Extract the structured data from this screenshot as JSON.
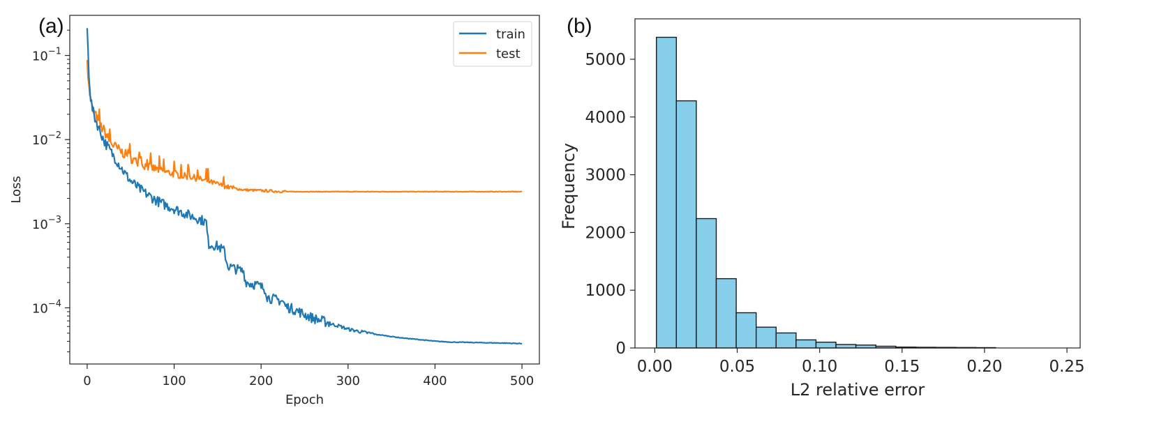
{
  "chart_data": [
    {
      "panel": "(a)",
      "type": "line",
      "xlabel": "Epoch",
      "ylabel": "Loss",
      "yscale": "log",
      "xlim": [
        -20,
        520
      ],
      "ylim": [
        2.15e-05,
        0.3
      ],
      "x_ticks": [
        0,
        100,
        200,
        300,
        400,
        500
      ],
      "y_ticks": [
        {
          "value": 0.1,
          "base": "10",
          "exp": "−1"
        },
        {
          "value": 0.01,
          "base": "10",
          "exp": "−2"
        },
        {
          "value": 0.001,
          "base": "10",
          "exp": "−3"
        },
        {
          "value": 0.0001,
          "base": "10",
          "exp": "−4"
        }
      ],
      "legend_position": "top-right",
      "series": [
        {
          "name": "train",
          "color": "#1f77b4",
          "points": [
            [
              0,
              0.2
            ],
            [
              2,
              0.06
            ],
            [
              4,
              0.03
            ],
            [
              6,
              0.022
            ],
            [
              10,
              0.016
            ],
            [
              15,
              0.012
            ],
            [
              20,
              0.009
            ],
            [
              25,
              0.0075
            ],
            [
              30,
              0.0062
            ],
            [
              35,
              0.0052
            ],
            [
              40,
              0.0043
            ],
            [
              45,
              0.0036
            ],
            [
              50,
              0.0031
            ],
            [
              60,
              0.0025
            ],
            [
              70,
              0.0021
            ],
            [
              80,
              0.0018
            ],
            [
              90,
              0.0016
            ],
            [
              100,
              0.00145
            ],
            [
              110,
              0.0013
            ],
            [
              120,
              0.00118
            ],
            [
              130,
              0.00108
            ],
            [
              137,
              0.001
            ],
            [
              138,
              0.00075
            ],
            [
              139,
              0.0006
            ],
            [
              140,
              0.00055
            ],
            [
              150,
              0.00052
            ],
            [
              158,
              0.00045
            ],
            [
              160,
              0.00035
            ],
            [
              162,
              0.0003
            ],
            [
              170,
              0.00028
            ],
            [
              180,
              0.00026
            ],
            [
              182,
              0.0002
            ],
            [
              185,
              0.00019
            ],
            [
              195,
              0.00018
            ],
            [
              205,
              0.00016
            ],
            [
              207,
              0.00013
            ],
            [
              210,
              0.000125
            ],
            [
              225,
              0.000115
            ],
            [
              228,
              0.0001
            ],
            [
              240,
              9e-05
            ],
            [
              250,
              8e-05
            ],
            [
              260,
              7.2e-05
            ],
            [
              275,
              6.5e-05
            ],
            [
              290,
              6e-05
            ],
            [
              300,
              5.5e-05
            ],
            [
              320,
              5e-05
            ],
            [
              340,
              4.7e-05
            ],
            [
              360,
              4.4e-05
            ],
            [
              380,
              4.2e-05
            ],
            [
              400,
              4e-05
            ],
            [
              420,
              3.9e-05
            ],
            [
              450,
              3.85e-05
            ],
            [
              480,
              3.8e-05
            ],
            [
              500,
              3.75e-05
            ]
          ]
        },
        {
          "name": "test",
          "color": "#ff7f0e",
          "points": [
            [
              0,
              0.075
            ],
            [
              2,
              0.04
            ],
            [
              4,
              0.028
            ],
            [
              6,
              0.022
            ],
            [
              10,
              0.018
            ],
            [
              15,
              0.014
            ],
            [
              20,
              0.012
            ],
            [
              25,
              0.0095
            ],
            [
              30,
              0.0082
            ],
            [
              40,
              0.0068
            ],
            [
              50,
              0.0058
            ],
            [
              60,
              0.005
            ],
            [
              70,
              0.0046
            ],
            [
              80,
              0.0043
            ],
            [
              90,
              0.004
            ],
            [
              100,
              0.0038
            ],
            [
              110,
              0.0036
            ],
            [
              120,
              0.0035
            ],
            [
              130,
              0.0033
            ],
            [
              140,
              0.0031
            ],
            [
              150,
              0.0029
            ],
            [
              160,
              0.0027
            ],
            [
              170,
              0.0026
            ],
            [
              180,
              0.0025
            ],
            [
              200,
              0.00245
            ],
            [
              220,
              0.0024
            ],
            [
              250,
              0.0024
            ],
            [
              300,
              0.0024
            ],
            [
              350,
              0.0024
            ],
            [
              400,
              0.0024
            ],
            [
              450,
              0.0024
            ],
            [
              500,
              0.0024
            ]
          ]
        }
      ]
    },
    {
      "panel": "(b)",
      "type": "histogram",
      "xlabel": "L2 relative error",
      "ylabel": "Frequency",
      "xlim": [
        -0.012,
        0.258
      ],
      "ylim": [
        0,
        5700
      ],
      "x_ticks": [
        "0.00",
        "0.05",
        "0.10",
        "0.15",
        "0.20",
        "0.25"
      ],
      "x_tick_values": [
        0,
        0.05,
        0.1,
        0.15,
        0.2,
        0.25
      ],
      "y_ticks": [
        0,
        1000,
        2000,
        3000,
        4000,
        5000
      ],
      "bar_color": "#87ceeb",
      "edge_color": "#1a1a1a",
      "bin_start": 0.001,
      "bin_width": 0.0121,
      "values": [
        5380,
        4280,
        2240,
        1200,
        610,
        360,
        260,
        140,
        100,
        60,
        50,
        30,
        15,
        12,
        10,
        8,
        6,
        0,
        0,
        0
      ]
    }
  ]
}
